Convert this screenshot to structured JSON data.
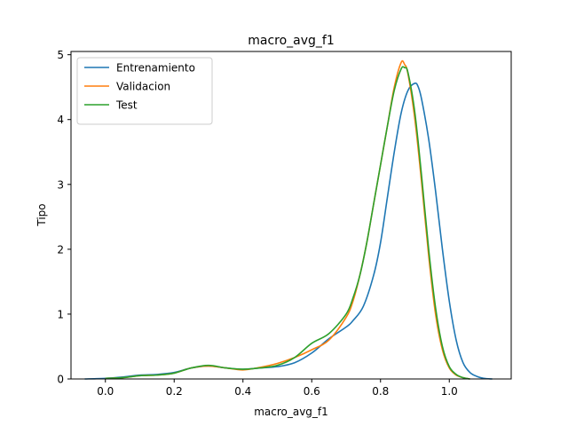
{
  "chart_data": {
    "type": "line",
    "title": "macro_avg_f1",
    "xlabel": "macro_avg_f1",
    "ylabel": "Tipo",
    "xlim": [
      -0.1,
      1.18
    ],
    "ylim": [
      0,
      5.05
    ],
    "xticks": [
      0.0,
      0.2,
      0.4,
      0.6,
      0.8,
      1.0
    ],
    "yticks": [
      0,
      1,
      2,
      3,
      4,
      5
    ],
    "grid": false,
    "legend_position": "top-left",
    "series": [
      {
        "name": "Entrenamiento",
        "color": "#1f77b4",
        "x": [
          -0.06,
          0.0,
          0.05,
          0.1,
          0.15,
          0.2,
          0.25,
          0.3,
          0.35,
          0.4,
          0.45,
          0.5,
          0.55,
          0.6,
          0.65,
          0.7,
          0.72,
          0.75,
          0.78,
          0.8,
          0.82,
          0.84,
          0.86,
          0.88,
          0.9,
          0.91,
          0.92,
          0.94,
          0.96,
          0.98,
          1.0,
          1.02,
          1.04,
          1.06,
          1.08,
          1.1,
          1.125
        ],
        "y": [
          0.0,
          0.01,
          0.03,
          0.06,
          0.07,
          0.1,
          0.17,
          0.2,
          0.17,
          0.15,
          0.17,
          0.19,
          0.25,
          0.4,
          0.62,
          0.8,
          0.9,
          1.12,
          1.6,
          2.1,
          2.8,
          3.5,
          4.1,
          4.45,
          4.56,
          4.5,
          4.3,
          3.7,
          2.9,
          2.0,
          1.2,
          0.6,
          0.25,
          0.1,
          0.04,
          0.01,
          0.0
        ]
      },
      {
        "name": "Validacion",
        "color": "#ff7f0e",
        "x": [
          0.0,
          0.05,
          0.1,
          0.15,
          0.2,
          0.25,
          0.3,
          0.35,
          0.4,
          0.45,
          0.5,
          0.55,
          0.6,
          0.65,
          0.7,
          0.72,
          0.74,
          0.76,
          0.78,
          0.8,
          0.82,
          0.84,
          0.86,
          0.87,
          0.88,
          0.9,
          0.92,
          0.94,
          0.96,
          0.98,
          1.0,
          1.02,
          1.04,
          1.06
        ],
        "y": [
          0.01,
          0.02,
          0.05,
          0.06,
          0.09,
          0.17,
          0.2,
          0.17,
          0.14,
          0.18,
          0.24,
          0.33,
          0.45,
          0.6,
          0.95,
          1.2,
          1.6,
          2.1,
          2.7,
          3.3,
          3.9,
          4.5,
          4.88,
          4.85,
          4.7,
          4.0,
          3.0,
          1.9,
          1.0,
          0.45,
          0.17,
          0.06,
          0.02,
          0.0
        ]
      },
      {
        "name": "Test",
        "color": "#2ca02c",
        "x": [
          0.0,
          0.05,
          0.1,
          0.15,
          0.2,
          0.25,
          0.3,
          0.35,
          0.4,
          0.45,
          0.5,
          0.55,
          0.6,
          0.65,
          0.7,
          0.72,
          0.74,
          0.76,
          0.78,
          0.8,
          0.82,
          0.84,
          0.86,
          0.87,
          0.88,
          0.9,
          0.92,
          0.94,
          0.96,
          0.98,
          1.0,
          1.02,
          1.04,
          1.06
        ],
        "y": [
          0.01,
          0.02,
          0.05,
          0.06,
          0.09,
          0.17,
          0.21,
          0.17,
          0.15,
          0.17,
          0.21,
          0.33,
          0.55,
          0.7,
          1.0,
          1.25,
          1.6,
          2.1,
          2.7,
          3.3,
          3.9,
          4.45,
          4.78,
          4.8,
          4.72,
          4.1,
          3.1,
          2.0,
          1.1,
          0.5,
          0.19,
          0.07,
          0.02,
          0.0
        ]
      }
    ]
  }
}
